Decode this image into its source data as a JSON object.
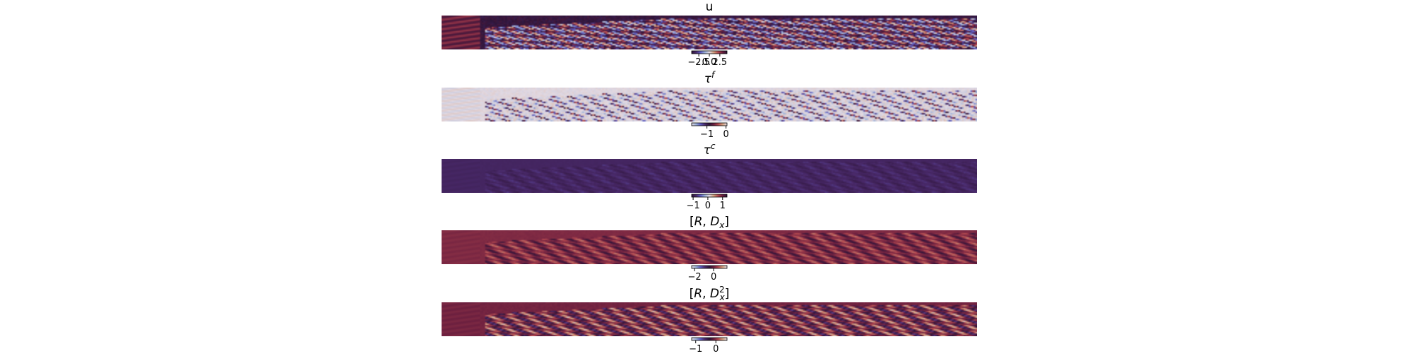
{
  "figure": {
    "panels": [
      {
        "key": "u",
        "title": "u",
        "title_sup": "",
        "colormap_name": "twilight_shifted",
        "colormap": [
          "#2e1539",
          "#4a2a6b",
          "#5f5ec3",
          "#9ab0d8",
          "#e2d9e2",
          "#d2a07e",
          "#b2474f",
          "#6b1f3f",
          "#2e1539"
        ],
        "background": "#2e1539",
        "pattern": {
          "hue_bg": 0.0,
          "hue_amp": 0.5,
          "hue_bias": 0.0,
          "left_hue": 0.88,
          "sparse": false,
          "noise": 0.25
        }
      },
      {
        "key": "tau_f",
        "title": "τ",
        "title_sup": "f",
        "colormap_name": "twilight",
        "colormap": [
          "#e2d9e2",
          "#9ab0d8",
          "#5f5ec3",
          "#4a2a6b",
          "#2e1539",
          "#6b1f3f",
          "#b2474f",
          "#d2a07e",
          "#e2d9e2"
        ],
        "background": "#e2d9e2",
        "pattern": {
          "hue_bg": 0.0,
          "hue_amp": 0.85,
          "hue_bias": 0.5,
          "left_hue": 0.0,
          "sparse": true,
          "noise": 0.1
        }
      },
      {
        "key": "tau_c",
        "title": "τ",
        "title_sup": "c",
        "colormap_name": "twilight_shifted",
        "colormap": [
          "#2e1539",
          "#4a2a6b",
          "#5f5ec3",
          "#9ab0d8",
          "#e2d9e2",
          "#d2a07e",
          "#b2474f",
          "#6b1f3f",
          "#2e1539"
        ],
        "background": "#4a1a63",
        "pattern": {
          "hue_bg": 0.1,
          "hue_amp": 0.05,
          "hue_bias": 0.0,
          "left_hue": 0.1,
          "sparse": false,
          "noise": 0.03
        }
      },
      {
        "key": "R_Dx",
        "title": "[R, D",
        "title_sub": "x",
        "title_end": "]",
        "colormap_name": "twilight",
        "colormap": [
          "#e2d9e2",
          "#9ab0d8",
          "#5f5ec3",
          "#4a2a6b",
          "#2e1539",
          "#6b1f3f",
          "#b2474f",
          "#d2a07e",
          "#e2d9e2"
        ],
        "background": "#9b3550",
        "pattern": {
          "hue_bg": 0.66,
          "hue_amp": 0.16,
          "hue_bias": -0.5,
          "left_hue": 0.66,
          "sparse": false,
          "noise": 0.04
        }
      },
      {
        "key": "R_Dx2",
        "title": "[R, D",
        "title_sub": "x",
        "title_sup": "2",
        "title_end": "]",
        "colormap_name": "twilight",
        "colormap": [
          "#e2d9e2",
          "#9ab0d8",
          "#5f5ec3",
          "#4a2a6b",
          "#2e1539",
          "#6b1f3f",
          "#b2474f",
          "#d2a07e",
          "#e2d9e2"
        ],
        "background": "#922a4e",
        "pattern": {
          "hue_bg": 0.64,
          "hue_amp": 0.26,
          "hue_bias": -0.6,
          "left_hue": 0.64,
          "sparse": false,
          "noise": 0.05
        }
      }
    ]
  },
  "chart_data": [
    {
      "type": "heatmap",
      "title": "u",
      "colorbar": {
        "ticks": [
          -2.5,
          0.0,
          2.5
        ],
        "tick_labels": [
          "−2.5",
          "0.0",
          "2.5"
        ],
        "range": [
          -4.2,
          4.2
        ]
      }
    },
    {
      "type": "heatmap",
      "title": "τ^f",
      "colorbar": {
        "ticks": [
          -1,
          0
        ],
        "tick_labels": [
          "−1",
          "0"
        ],
        "range": [
          -1.8,
          0.05
        ]
      }
    },
    {
      "type": "heatmap",
      "title": "τ^c",
      "colorbar": {
        "ticks": [
          -1,
          0,
          1
        ],
        "tick_labels": [
          "−1",
          "0",
          "1"
        ],
        "range": [
          -1.1,
          1.3
        ]
      }
    },
    {
      "type": "heatmap",
      "title": "[R, D_x]",
      "colorbar": {
        "ticks": [
          -2,
          0
        ],
        "tick_labels": [
          "−2",
          "0"
        ],
        "range": [
          -2.3,
          1.4
        ]
      }
    },
    {
      "type": "heatmap",
      "title": "[R, D_x^2]",
      "colorbar": {
        "ticks": [
          -1,
          0
        ],
        "tick_labels": [
          "−1",
          "0"
        ],
        "range": [
          -1.2,
          0.55
        ]
      }
    }
  ]
}
